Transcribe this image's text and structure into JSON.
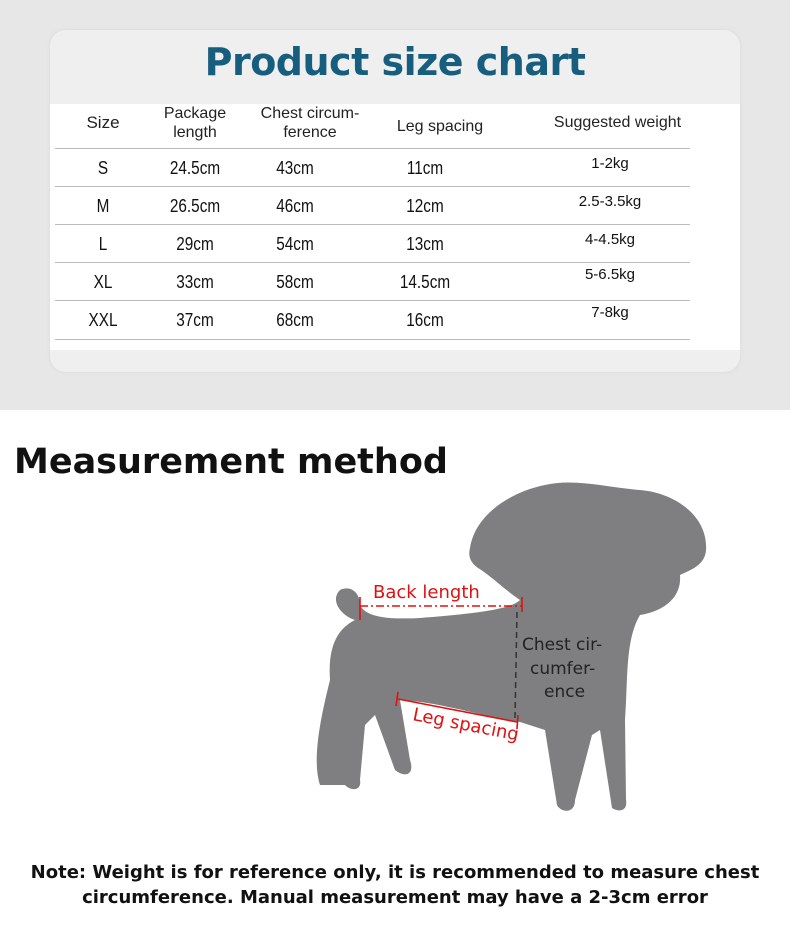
{
  "size_chart": {
    "title": "Product size chart",
    "headers": [
      "Size",
      "Package length",
      "Chest circum-ference",
      "Leg spacing",
      "Suggested weight"
    ],
    "rows": [
      {
        "size": "S",
        "package_length": "24.5cm",
        "chest": "43cm",
        "leg_spacing": "11cm",
        "weight": "1-2kg"
      },
      {
        "size": "M",
        "package_length": "26.5cm",
        "chest": "46cm",
        "leg_spacing": "12cm",
        "weight": "2.5-3.5kg"
      },
      {
        "size": "L",
        "package_length": "29cm",
        "chest": "54cm",
        "leg_spacing": "13cm",
        "weight": "4-4.5kg"
      },
      {
        "size": "XL",
        "package_length": "33cm",
        "chest": "58cm",
        "leg_spacing": "14.5cm",
        "weight": "5-6.5kg"
      },
      {
        "size": "XXL",
        "package_length": "37cm",
        "chest": "68cm",
        "leg_spacing": "16cm",
        "weight": "7-8kg"
      }
    ]
  },
  "measurement": {
    "title": "Measurement method",
    "back_length": "Back length",
    "chest_lines": [
      "Chest cir-",
      "cumfer-",
      "ence"
    ],
    "leg_spacing": "Leg spacing",
    "colors": {
      "title": "#175d7e",
      "dog": "#7f7f81",
      "annotation": "#e01010"
    }
  },
  "note": {
    "line1": "Note: Weight is for reference only, it is recommended to measure chest",
    "line2": "circumference. Manual measurement may have a 2-3cm error"
  }
}
